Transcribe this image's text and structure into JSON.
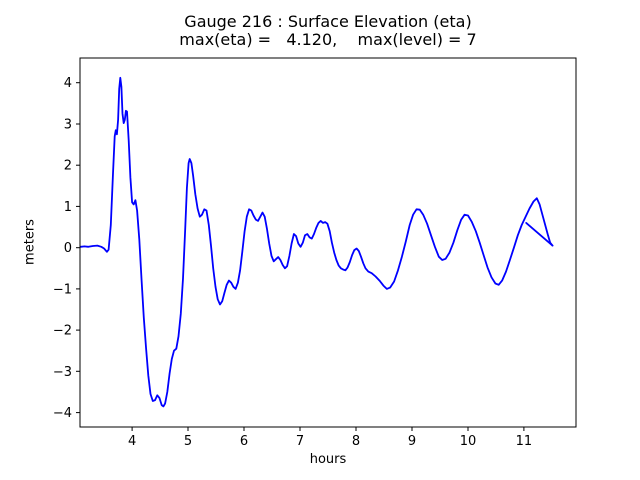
{
  "figure": {
    "background": "#ffffff"
  },
  "chart_data": {
    "type": "line",
    "title": "Gauge 216 : Surface Elevation (eta)",
    "subtitle": "max(eta) =   4.120,    max(level) = 7",
    "xlabel": "hours",
    "ylabel": "meters",
    "xlim": [
      3.07,
      11.93
    ],
    "ylim": [
      -4.35,
      4.6
    ],
    "grid": false,
    "legend": "none",
    "line_color": "#0000ff",
    "frame_color": "#000000",
    "xticks": [
      4,
      5,
      6,
      7,
      8,
      9,
      10,
      11
    ],
    "xtick_labels": [
      "4",
      "5",
      "6",
      "7",
      "8",
      "9",
      "10",
      "11"
    ],
    "yticks": [
      -4,
      -3,
      -2,
      -1,
      0,
      1,
      2,
      3,
      4
    ],
    "ytick_labels": [
      "−4",
      "−3",
      "−2",
      "−1",
      "0",
      "1",
      "2",
      "3",
      "4"
    ],
    "max_eta": 4.12,
    "max_level": 7,
    "series": [
      {
        "name": "eta",
        "points": [
          [
            3.08,
            0.02
          ],
          [
            3.15,
            0.03
          ],
          [
            3.22,
            0.02
          ],
          [
            3.3,
            0.04
          ],
          [
            3.38,
            0.05
          ],
          [
            3.45,
            0.02
          ],
          [
            3.5,
            -0.02
          ],
          [
            3.55,
            -0.1
          ],
          [
            3.58,
            -0.05
          ],
          [
            3.62,
            0.55
          ],
          [
            3.66,
            1.8
          ],
          [
            3.69,
            2.7
          ],
          [
            3.71,
            2.85
          ],
          [
            3.73,
            2.75
          ],
          [
            3.75,
            3.1
          ],
          [
            3.77,
            3.85
          ],
          [
            3.79,
            4.12
          ],
          [
            3.81,
            3.9
          ],
          [
            3.83,
            3.25
          ],
          [
            3.85,
            3.02
          ],
          [
            3.87,
            3.1
          ],
          [
            3.89,
            3.32
          ],
          [
            3.91,
            3.3
          ],
          [
            3.94,
            2.6
          ],
          [
            3.97,
            1.7
          ],
          [
            4.0,
            1.1
          ],
          [
            4.03,
            1.05
          ],
          [
            4.06,
            1.15
          ],
          [
            4.09,
            0.9
          ],
          [
            4.13,
            0.2
          ],
          [
            4.17,
            -0.8
          ],
          [
            4.21,
            -1.7
          ],
          [
            4.25,
            -2.45
          ],
          [
            4.29,
            -3.1
          ],
          [
            4.33,
            -3.55
          ],
          [
            4.37,
            -3.72
          ],
          [
            4.41,
            -3.7
          ],
          [
            4.45,
            -3.58
          ],
          [
            4.49,
            -3.65
          ],
          [
            4.53,
            -3.82
          ],
          [
            4.56,
            -3.85
          ],
          [
            4.59,
            -3.78
          ],
          [
            4.63,
            -3.5
          ],
          [
            4.67,
            -3.05
          ],
          [
            4.71,
            -2.7
          ],
          [
            4.75,
            -2.5
          ],
          [
            4.79,
            -2.45
          ],
          [
            4.83,
            -2.15
          ],
          [
            4.87,
            -1.6
          ],
          [
            4.91,
            -0.75
          ],
          [
            4.95,
            0.45
          ],
          [
            4.98,
            1.45
          ],
          [
            5.01,
            2.05
          ],
          [
            5.03,
            2.15
          ],
          [
            5.06,
            2.05
          ],
          [
            5.09,
            1.75
          ],
          [
            5.13,
            1.3
          ],
          [
            5.17,
            0.95
          ],
          [
            5.21,
            0.75
          ],
          [
            5.25,
            0.8
          ],
          [
            5.29,
            0.93
          ],
          [
            5.33,
            0.9
          ],
          [
            5.37,
            0.55
          ],
          [
            5.41,
            0.05
          ],
          [
            5.45,
            -0.5
          ],
          [
            5.49,
            -0.95
          ],
          [
            5.53,
            -1.25
          ],
          [
            5.57,
            -1.38
          ],
          [
            5.61,
            -1.3
          ],
          [
            5.65,
            -1.1
          ],
          [
            5.69,
            -0.9
          ],
          [
            5.73,
            -0.8
          ],
          [
            5.77,
            -0.85
          ],
          [
            5.81,
            -0.95
          ],
          [
            5.85,
            -1.0
          ],
          [
            5.89,
            -0.85
          ],
          [
            5.93,
            -0.55
          ],
          [
            5.97,
            -0.1
          ],
          [
            6.01,
            0.4
          ],
          [
            6.05,
            0.75
          ],
          [
            6.09,
            0.93
          ],
          [
            6.13,
            0.9
          ],
          [
            6.17,
            0.78
          ],
          [
            6.21,
            0.68
          ],
          [
            6.25,
            0.65
          ],
          [
            6.29,
            0.75
          ],
          [
            6.33,
            0.85
          ],
          [
            6.37,
            0.75
          ],
          [
            6.41,
            0.45
          ],
          [
            6.45,
            0.1
          ],
          [
            6.49,
            -0.2
          ],
          [
            6.53,
            -0.33
          ],
          [
            6.57,
            -0.28
          ],
          [
            6.61,
            -0.23
          ],
          [
            6.65,
            -0.3
          ],
          [
            6.69,
            -0.42
          ],
          [
            6.73,
            -0.5
          ],
          [
            6.77,
            -0.45
          ],
          [
            6.81,
            -0.2
          ],
          [
            6.85,
            0.1
          ],
          [
            6.89,
            0.33
          ],
          [
            6.93,
            0.28
          ],
          [
            6.97,
            0.1
          ],
          [
            7.01,
            0.02
          ],
          [
            7.05,
            0.12
          ],
          [
            7.09,
            0.3
          ],
          [
            7.13,
            0.33
          ],
          [
            7.17,
            0.25
          ],
          [
            7.21,
            0.22
          ],
          [
            7.25,
            0.33
          ],
          [
            7.29,
            0.48
          ],
          [
            7.33,
            0.6
          ],
          [
            7.37,
            0.65
          ],
          [
            7.41,
            0.6
          ],
          [
            7.45,
            0.62
          ],
          [
            7.49,
            0.58
          ],
          [
            7.53,
            0.4
          ],
          [
            7.57,
            0.12
          ],
          [
            7.61,
            -0.12
          ],
          [
            7.65,
            -0.3
          ],
          [
            7.69,
            -0.43
          ],
          [
            7.73,
            -0.5
          ],
          [
            7.77,
            -0.53
          ],
          [
            7.81,
            -0.55
          ],
          [
            7.85,
            -0.48
          ],
          [
            7.89,
            -0.35
          ],
          [
            7.93,
            -0.18
          ],
          [
            7.97,
            -0.06
          ],
          [
            8.01,
            -0.02
          ],
          [
            8.05,
            -0.08
          ],
          [
            8.09,
            -0.22
          ],
          [
            8.13,
            -0.38
          ],
          [
            8.17,
            -0.5
          ],
          [
            8.22,
            -0.58
          ],
          [
            8.28,
            -0.62
          ],
          [
            8.35,
            -0.7
          ],
          [
            8.42,
            -0.8
          ],
          [
            8.49,
            -0.92
          ],
          [
            8.55,
            -1.0
          ],
          [
            8.61,
            -0.97
          ],
          [
            8.68,
            -0.82
          ],
          [
            8.75,
            -0.55
          ],
          [
            8.82,
            -0.22
          ],
          [
            8.89,
            0.15
          ],
          [
            8.96,
            0.55
          ],
          [
            9.02,
            0.8
          ],
          [
            9.08,
            0.93
          ],
          [
            9.14,
            0.92
          ],
          [
            9.2,
            0.8
          ],
          [
            9.27,
            0.58
          ],
          [
            9.34,
            0.3
          ],
          [
            9.41,
            0.02
          ],
          [
            9.48,
            -0.22
          ],
          [
            9.54,
            -0.3
          ],
          [
            9.6,
            -0.27
          ],
          [
            9.67,
            -0.12
          ],
          [
            9.74,
            0.12
          ],
          [
            9.81,
            0.42
          ],
          [
            9.88,
            0.68
          ],
          [
            9.94,
            0.8
          ],
          [
            10.0,
            0.78
          ],
          [
            10.07,
            0.62
          ],
          [
            10.14,
            0.4
          ],
          [
            10.21,
            0.12
          ],
          [
            10.28,
            -0.18
          ],
          [
            10.35,
            -0.48
          ],
          [
            10.42,
            -0.72
          ],
          [
            10.49,
            -0.87
          ],
          [
            10.55,
            -0.9
          ],
          [
            10.61,
            -0.8
          ],
          [
            10.68,
            -0.58
          ],
          [
            10.75,
            -0.3
          ],
          [
            10.82,
            0.0
          ],
          [
            10.89,
            0.3
          ],
          [
            10.96,
            0.55
          ],
          [
            11.03,
            0.75
          ],
          [
            11.1,
            0.95
          ],
          [
            11.17,
            1.12
          ],
          [
            11.23,
            1.2
          ],
          [
            11.28,
            1.05
          ],
          [
            11.33,
            0.8
          ],
          [
            11.38,
            0.55
          ],
          [
            11.43,
            0.3
          ],
          [
            11.47,
            0.12
          ],
          [
            11.51,
            0.05
          ]
        ]
      },
      {
        "name": "eta-overlap-segment",
        "points": [
          [
            11.04,
            0.6
          ],
          [
            11.51,
            0.05
          ]
        ]
      }
    ]
  }
}
